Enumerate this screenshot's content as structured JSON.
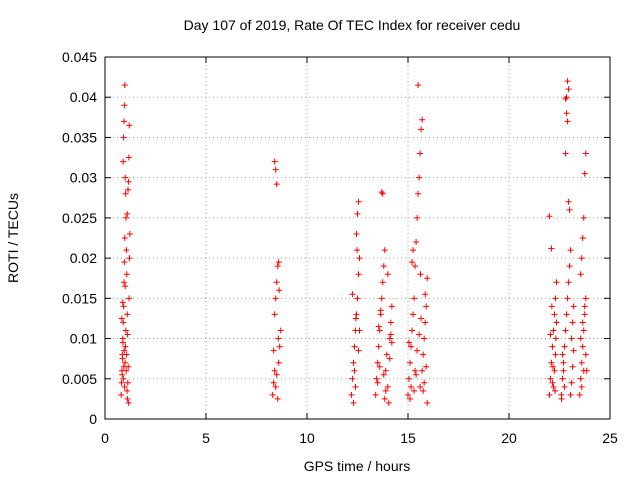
{
  "chart_data": {
    "type": "scatter",
    "title": "Day 107 of 2019, Rate Of TEC Index for receiver cedu",
    "xlabel": "GPS time / hours",
    "ylabel": "ROTI / TECUs",
    "xlim": [
      0,
      25
    ],
    "ylim": [
      0,
      0.045
    ],
    "x_ticks": [
      0,
      5,
      10,
      15,
      20,
      25
    ],
    "y_ticks": [
      0,
      0.005,
      0.01,
      0.015,
      0.02,
      0.025,
      0.03,
      0.035,
      0.04,
      0.045
    ],
    "x_tick_labels": [
      "0",
      "5",
      "10",
      "15",
      "20",
      "25"
    ],
    "y_tick_labels": [
      "0",
      "0.005",
      "0.01",
      "0.015",
      "0.02",
      "0.025",
      "0.03",
      "0.035",
      "0.04",
      "0.045"
    ],
    "grid": true,
    "marker": "+",
    "color": "#ff0000",
    "series": [
      {
        "name": "ROTI",
        "points": [
          [
            0.8,
            0.003
          ],
          [
            0.82,
            0.0045
          ],
          [
            0.84,
            0.006
          ],
          [
            0.86,
            0.008
          ],
          [
            0.88,
            0.01
          ],
          [
            0.9,
            0.012
          ],
          [
            0.92,
            0.014
          ],
          [
            0.94,
            0.017
          ],
          [
            0.96,
            0.0195
          ],
          [
            0.98,
            0.0225
          ],
          [
            0.85,
            0.0055
          ],
          [
            0.87,
            0.0075
          ],
          [
            0.89,
            0.0095
          ],
          [
            0.91,
            0.005
          ],
          [
            0.93,
            0.0065
          ],
          [
            0.95,
            0.0085
          ],
          [
            0.97,
            0.004
          ],
          [
            0.99,
            0.007
          ],
          [
            1.01,
            0.009
          ],
          [
            1.03,
            0.011
          ],
          [
            1.05,
            0.006
          ],
          [
            1.07,
            0.008
          ],
          [
            1.09,
            0.0035
          ],
          [
            1.11,
            0.0025
          ],
          [
            1.13,
            0.0045
          ],
          [
            1.15,
            0.0065
          ],
          [
            1.17,
            0.002
          ],
          [
            1.19,
            0.015
          ],
          [
            1.21,
            0.02
          ],
          [
            1.23,
            0.023
          ],
          [
            0.9,
            0.032
          ],
          [
            0.92,
            0.035
          ],
          [
            0.94,
            0.037
          ],
          [
            0.96,
            0.039
          ],
          [
            0.98,
            0.0415
          ],
          [
            1.0,
            0.03
          ],
          [
            1.02,
            0.028
          ],
          [
            1.04,
            0.025
          ],
          [
            1.06,
            0.021
          ],
          [
            1.08,
            0.018
          ],
          [
            1.1,
            0.013
          ],
          [
            1.12,
            0.0105
          ],
          [
            1.14,
            0.0285
          ],
          [
            1.16,
            0.0295
          ],
          [
            1.18,
            0.0325
          ],
          [
            1.2,
            0.0365
          ],
          [
            0.83,
            0.0125
          ],
          [
            0.88,
            0.0145
          ],
          [
            1.0,
            0.0165
          ],
          [
            1.1,
            0.0255
          ],
          [
            8.3,
            0.003
          ],
          [
            8.35,
            0.0045
          ],
          [
            8.4,
            0.006
          ],
          [
            8.45,
            0.004
          ],
          [
            8.5,
            0.0055
          ],
          [
            8.55,
            0.0025
          ],
          [
            8.6,
            0.007
          ],
          [
            8.65,
            0.009
          ],
          [
            8.7,
            0.011
          ],
          [
            8.4,
            0.013
          ],
          [
            8.45,
            0.015
          ],
          [
            8.5,
            0.017
          ],
          [
            8.55,
            0.019
          ],
          [
            8.6,
            0.0195
          ],
          [
            8.35,
            0.0085
          ],
          [
            8.4,
            0.032
          ],
          [
            8.45,
            0.031
          ],
          [
            8.5,
            0.0292
          ],
          [
            8.62,
            0.016
          ],
          [
            8.58,
            0.01
          ],
          [
            12.2,
            0.003
          ],
          [
            12.25,
            0.005
          ],
          [
            12.3,
            0.007
          ],
          [
            12.35,
            0.009
          ],
          [
            12.4,
            0.011
          ],
          [
            12.45,
            0.013
          ],
          [
            12.5,
            0.015
          ],
          [
            12.55,
            0.018
          ],
          [
            12.6,
            0.02
          ],
          [
            12.45,
            0.023
          ],
          [
            12.5,
            0.0255
          ],
          [
            12.55,
            0.027
          ],
          [
            12.4,
            0.004
          ],
          [
            12.35,
            0.006
          ],
          [
            12.3,
            0.002
          ],
          [
            12.25,
            0.0155
          ],
          [
            12.6,
            0.011
          ],
          [
            12.55,
            0.0085
          ],
          [
            12.48,
            0.021
          ],
          [
            12.42,
            0.0125
          ],
          [
            13.4,
            0.003
          ],
          [
            13.45,
            0.005
          ],
          [
            13.5,
            0.007
          ],
          [
            13.55,
            0.009
          ],
          [
            13.6,
            0.011
          ],
          [
            13.65,
            0.013
          ],
          [
            13.7,
            0.015
          ],
          [
            13.75,
            0.017
          ],
          [
            13.8,
            0.019
          ],
          [
            13.85,
            0.021
          ],
          [
            13.9,
            0.006
          ],
          [
            13.95,
            0.008
          ],
          [
            14.0,
            0.004
          ],
          [
            14.05,
            0.002
          ],
          [
            14.1,
            0.01
          ],
          [
            14.15,
            0.012
          ],
          [
            14.2,
            0.014
          ],
          [
            13.7,
            0.0282
          ],
          [
            13.75,
            0.028
          ],
          [
            14.0,
            0.018
          ],
          [
            13.5,
            0.0045
          ],
          [
            13.6,
            0.0065
          ],
          [
            13.8,
            0.0055
          ],
          [
            13.9,
            0.0035
          ],
          [
            14.1,
            0.0075
          ],
          [
            14.2,
            0.0095
          ],
          [
            13.55,
            0.0115
          ],
          [
            13.65,
            0.0135
          ],
          [
            13.85,
            0.0025
          ],
          [
            14.15,
            0.0105
          ],
          [
            15.0,
            0.003
          ],
          [
            15.05,
            0.005
          ],
          [
            15.1,
            0.007
          ],
          [
            15.15,
            0.009
          ],
          [
            15.2,
            0.011
          ],
          [
            15.25,
            0.013
          ],
          [
            15.3,
            0.015
          ],
          [
            15.35,
            0.019
          ],
          [
            15.4,
            0.022
          ],
          [
            15.45,
            0.025
          ],
          [
            15.5,
            0.028
          ],
          [
            15.55,
            0.03
          ],
          [
            15.6,
            0.033
          ],
          [
            15.65,
            0.036
          ],
          [
            15.7,
            0.0372
          ],
          [
            15.5,
            0.0415
          ],
          [
            15.2,
            0.0195
          ],
          [
            15.25,
            0.021
          ],
          [
            15.6,
            0.004
          ],
          [
            15.7,
            0.006
          ],
          [
            15.75,
            0.008
          ],
          [
            15.8,
            0.01
          ],
          [
            15.85,
            0.012
          ],
          [
            15.9,
            0.014
          ],
          [
            15.95,
            0.002
          ],
          [
            15.15,
            0.004
          ],
          [
            15.35,
            0.006
          ],
          [
            15.45,
            0.0085
          ],
          [
            15.55,
            0.0105
          ],
          [
            15.65,
            0.0125
          ],
          [
            15.8,
            0.0045
          ],
          [
            15.9,
            0.0065
          ],
          [
            15.95,
            0.0175
          ],
          [
            15.1,
            0.0025
          ],
          [
            15.3,
            0.0035
          ],
          [
            15.4,
            0.0055
          ],
          [
            15.75,
            0.0035
          ],
          [
            15.85,
            0.0155
          ],
          [
            15.05,
            0.0095
          ],
          [
            15.62,
            0.018
          ],
          [
            22.0,
            0.003
          ],
          [
            22.05,
            0.005
          ],
          [
            22.1,
            0.007
          ],
          [
            22.15,
            0.009
          ],
          [
            22.2,
            0.011
          ],
          [
            22.25,
            0.013
          ],
          [
            22.3,
            0.015
          ],
          [
            22.35,
            0.017
          ],
          [
            22.0,
            0.0252
          ],
          [
            22.1,
            0.0212
          ],
          [
            22.15,
            0.0045
          ],
          [
            22.25,
            0.006
          ],
          [
            22.3,
            0.008
          ],
          [
            22.2,
            0.004
          ],
          [
            22.05,
            0.0105
          ],
          [
            22.35,
            0.012
          ],
          [
            22.28,
            0.0035
          ],
          [
            22.12,
            0.014
          ],
          [
            22.32,
            0.01
          ],
          [
            22.18,
            0.0065
          ],
          [
            22.6,
            0.003
          ],
          [
            22.65,
            0.005
          ],
          [
            22.7,
            0.007
          ],
          [
            22.75,
            0.009
          ],
          [
            22.8,
            0.011
          ],
          [
            22.85,
            0.013
          ],
          [
            22.9,
            0.015
          ],
          [
            22.95,
            0.017
          ],
          [
            23.0,
            0.019
          ],
          [
            23.05,
            0.021
          ],
          [
            22.8,
            0.0398
          ],
          [
            22.85,
            0.04
          ],
          [
            22.9,
            0.042
          ],
          [
            22.95,
            0.041
          ],
          [
            22.85,
            0.038
          ],
          [
            22.9,
            0.037
          ],
          [
            22.8,
            0.033
          ],
          [
            22.95,
            0.027
          ],
          [
            23.0,
            0.026
          ],
          [
            22.75,
            0.004
          ],
          [
            22.7,
            0.006
          ],
          [
            22.65,
            0.008
          ],
          [
            23.1,
            0.01
          ],
          [
            23.15,
            0.012
          ],
          [
            23.2,
            0.014
          ],
          [
            23.05,
            0.003
          ],
          [
            23.1,
            0.0045
          ],
          [
            23.15,
            0.0065
          ],
          [
            23.2,
            0.0085
          ],
          [
            22.6,
            0.0025
          ],
          [
            23.5,
            0.003
          ],
          [
            23.55,
            0.005
          ],
          [
            23.6,
            0.007
          ],
          [
            23.65,
            0.009
          ],
          [
            23.7,
            0.011
          ],
          [
            23.75,
            0.013
          ],
          [
            23.8,
            0.015
          ],
          [
            23.55,
            0.018
          ],
          [
            23.6,
            0.02
          ],
          [
            23.65,
            0.0225
          ],
          [
            23.7,
            0.025
          ],
          [
            23.75,
            0.0305
          ],
          [
            23.8,
            0.033
          ],
          [
            23.6,
            0.004
          ],
          [
            23.7,
            0.006
          ],
          [
            23.8,
            0.008
          ],
          [
            23.55,
            0.01
          ],
          [
            23.65,
            0.012
          ],
          [
            23.75,
            0.014
          ],
          [
            23.85,
            0.006
          ]
        ]
      }
    ]
  }
}
